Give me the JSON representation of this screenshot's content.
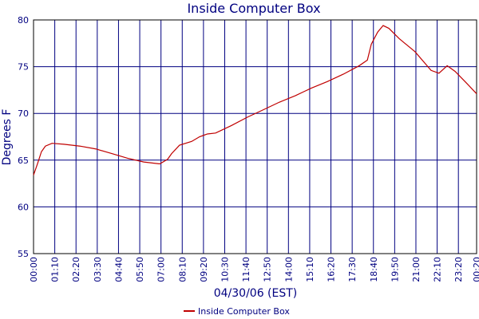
{
  "chart_data": {
    "type": "line",
    "title": "Inside Computer Box",
    "xlabel": "04/30/06 (EST)",
    "ylabel": "Degrees F",
    "xlim": [
      0,
      1460
    ],
    "xticks": [
      {
        "value": 0,
        "label": "00:00"
      },
      {
        "value": 70,
        "label": "01:10"
      },
      {
        "value": 140,
        "label": "02:20"
      },
      {
        "value": 210,
        "label": "03:30"
      },
      {
        "value": 280,
        "label": "04:40"
      },
      {
        "value": 350,
        "label": "05:50"
      },
      {
        "value": 420,
        "label": "07:00"
      },
      {
        "value": 490,
        "label": "08:10"
      },
      {
        "value": 560,
        "label": "09:20"
      },
      {
        "value": 630,
        "label": "10:30"
      },
      {
        "value": 700,
        "label": "11:40"
      },
      {
        "value": 770,
        "label": "12:50"
      },
      {
        "value": 840,
        "label": "14:00"
      },
      {
        "value": 910,
        "label": "15:10"
      },
      {
        "value": 980,
        "label": "16:20"
      },
      {
        "value": 1050,
        "label": "17:30"
      },
      {
        "value": 1120,
        "label": "18:40"
      },
      {
        "value": 1190,
        "label": "19:50"
      },
      {
        "value": 1260,
        "label": "21:00"
      },
      {
        "value": 1330,
        "label": "22:10"
      },
      {
        "value": 1400,
        "label": "23:20"
      },
      {
        "value": 1460,
        "label": "00:20"
      }
    ],
    "ylim": [
      55,
      80
    ],
    "yticks": [
      55,
      60,
      65,
      70,
      75,
      80
    ],
    "grid": true,
    "x": [
      0,
      13,
      26,
      39,
      61,
      100,
      153,
      205,
      258,
      310,
      363,
      416,
      442,
      455,
      481,
      521,
      547,
      573,
      600,
      652,
      705,
      758,
      810,
      863,
      915,
      968,
      1021,
      1073,
      1100,
      1113,
      1134,
      1152,
      1171,
      1205,
      1257,
      1310,
      1336,
      1363,
      1389,
      1428,
      1460
    ],
    "series": [
      {
        "name": "Inside Computer Box",
        "color": "#c00000",
        "values": [
          63.4,
          64.6,
          65.9,
          66.5,
          66.8,
          66.7,
          66.5,
          66.2,
          65.7,
          65.2,
          64.8,
          64.6,
          65.1,
          65.7,
          66.6,
          67.0,
          67.5,
          67.8,
          67.9,
          68.7,
          69.6,
          70.4,
          71.2,
          71.9,
          72.7,
          73.4,
          74.2,
          75.1,
          75.7,
          77.4,
          78.7,
          79.4,
          79.1,
          78.0,
          76.6,
          74.6,
          74.3,
          75.1,
          74.5,
          73.2,
          72.1
        ]
      }
    ],
    "legend": "bottom"
  }
}
